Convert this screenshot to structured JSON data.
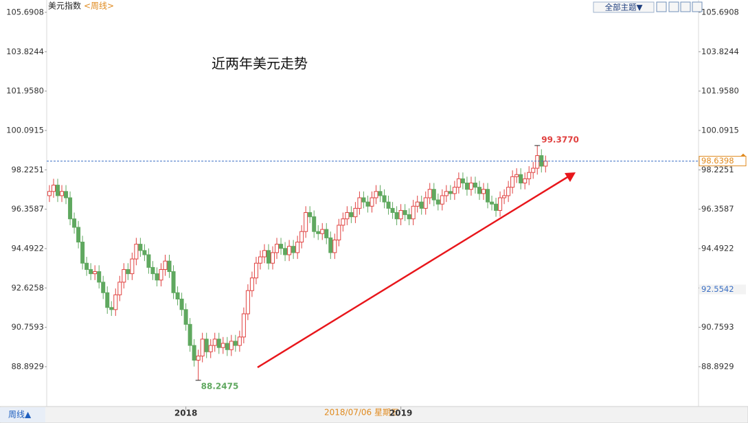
{
  "chart_data": {
    "type": "candlestick",
    "instrument": "美元指数",
    "period": "<周线>",
    "title": "近两年美元走势",
    "toolbar": "全部主题▼",
    "footer_tab": "周线▲",
    "cursor_date": "2018/07/06 星期五",
    "up_color": "#e0403f",
    "down_color": "#5fa85f",
    "ylim": [
      87.07,
      105.95
    ],
    "yticks": [
      105.6908,
      103.8244,
      {
        "value": 101.958,
        "label": "101.9580"
      },
      100.0915,
      98.2251,
      96.3587,
      94.4922,
      92.6258,
      90.7593,
      88.8929
    ],
    "xlim": [
      -0.66,
      157
    ],
    "xticks": [
      {
        "value": 33,
        "label": "2018"
      },
      {
        "value": 85,
        "label": "2019"
      }
    ],
    "high_label": {
      "value": 99.377,
      "label": "99.3770"
    },
    "low_label": {
      "value": 88.2475,
      "label": "88.2475"
    },
    "last_price": {
      "value": 98.6398,
      "label": "98.6398"
    },
    "marker_price": {
      "value": 92.5542,
      "label": "92.5542"
    },
    "open": [
      97.0,
      97.2,
      97.5,
      97.0,
      97.2,
      96.9,
      95.9,
      95.5,
      94.8,
      93.8,
      93.5,
      93.3,
      93.4,
      92.9,
      92.4,
      91.7,
      91.6,
      92.3,
      92.9,
      93.5,
      93.3,
      94.0,
      94.7,
      94.4,
      94.2,
      93.6,
      93.3,
      93.0,
      93.5,
      93.9,
      93.4,
      92.4,
      92.1,
      91.6,
      90.9,
      89.9,
      89.2,
      89.4,
      90.2,
      89.6,
      89.9,
      90.2,
      89.8,
      90.0,
      89.7,
      90.1,
      89.9,
      90.3,
      91.4,
      92.5,
      93.1,
      93.8,
      94.1,
      94.4,
      93.8,
      94.3,
      94.7,
      94.5,
      94.2,
      94.6,
      94.3,
      94.8,
      95.3,
      96.2,
      96.0,
      95.3,
      95.2,
      95.4,
      95.0,
      94.3,
      94.9,
      95.6,
      95.9,
      96.2,
      96.0,
      96.4,
      96.9,
      96.7,
      96.5,
      96.9,
      97.2,
      97.0,
      96.7,
      96.4,
      96.2,
      95.9,
      96.3,
      96.1,
      95.9,
      96.5,
      96.7,
      96.4,
      96.9,
      97.3,
      96.8,
      96.6,
      97.0,
      97.2,
      97.1,
      97.4,
      97.8,
      97.6,
      97.3,
      97.6,
      97.4,
      97.1,
      97.3,
      96.7,
      96.6,
      96.3,
      96.9,
      97.0,
      97.4,
      97.9,
      98.0,
      97.6,
      97.8,
      98.1,
      98.3,
      98.9,
      98.4
    ],
    "high": [
      97.5,
      97.8,
      97.8,
      97.5,
      97.5,
      97.2,
      96.2,
      95.8,
      95.1,
      94.1,
      93.8,
      93.7,
      93.7,
      93.2,
      92.7,
      92.0,
      92.6,
      93.2,
      93.8,
      93.8,
      94.3,
      95.0,
      95.0,
      94.7,
      94.5,
      93.9,
      93.6,
      93.8,
      94.2,
      94.2,
      93.7,
      92.7,
      92.4,
      91.9,
      91.2,
      90.2,
      89.7,
      90.5,
      90.5,
      90.2,
      90.5,
      90.5,
      90.3,
      90.3,
      90.4,
      90.4,
      90.6,
      91.7,
      92.8,
      93.4,
      94.1,
      94.4,
      94.7,
      94.7,
      94.6,
      95.0,
      95.0,
      94.8,
      94.9,
      94.9,
      95.1,
      95.6,
      96.5,
      96.5,
      96.3,
      95.6,
      95.7,
      95.7,
      95.3,
      95.2,
      95.9,
      96.2,
      96.5,
      96.5,
      96.7,
      97.2,
      97.2,
      97.0,
      97.2,
      97.5,
      97.5,
      97.3,
      97.0,
      96.7,
      96.5,
      96.6,
      96.6,
      96.4,
      96.8,
      97.0,
      97.0,
      97.2,
      97.6,
      97.6,
      97.1,
      97.3,
      97.5,
      97.5,
      97.7,
      98.1,
      98.1,
      97.9,
      97.9,
      97.9,
      97.7,
      97.6,
      97.6,
      97.0,
      96.9,
      97.2,
      97.3,
      97.7,
      98.2,
      98.3,
      98.3,
      98.1,
      98.4,
      98.6,
      99.377,
      99.2,
      98.9
    ],
    "low": [
      96.7,
      96.9,
      96.7,
      96.7,
      96.6,
      95.6,
      95.2,
      94.5,
      93.5,
      93.2,
      93.0,
      93.0,
      92.6,
      92.1,
      91.4,
      91.3,
      91.3,
      92.0,
      92.6,
      93.0,
      93.0,
      93.7,
      94.1,
      93.9,
      93.3,
      93.0,
      92.7,
      92.7,
      93.2,
      93.1,
      92.1,
      91.8,
      91.3,
      90.6,
      89.6,
      88.9,
      88.2475,
      89.1,
      89.3,
      89.3,
      89.6,
      89.5,
      89.5,
      89.4,
      89.4,
      89.6,
      89.6,
      90.0,
      91.1,
      92.2,
      92.8,
      93.5,
      93.8,
      93.5,
      93.5,
      94.0,
      94.2,
      93.9,
      93.9,
      94.0,
      94.0,
      94.5,
      95.0,
      95.7,
      95.0,
      94.9,
      94.9,
      94.7,
      94.0,
      94.0,
      94.6,
      95.3,
      95.6,
      95.7,
      95.7,
      96.1,
      96.4,
      96.2,
      96.2,
      96.6,
      96.7,
      96.4,
      96.1,
      95.9,
      95.6,
      95.6,
      95.8,
      95.6,
      95.6,
      96.2,
      96.1,
      96.1,
      96.6,
      96.5,
      96.3,
      96.3,
      96.7,
      96.8,
      96.8,
      97.1,
      97.3,
      97.0,
      97.0,
      97.1,
      96.8,
      96.8,
      96.4,
      96.3,
      96.0,
      96.0,
      96.6,
      96.7,
      97.1,
      97.6,
      97.3,
      97.3,
      97.5,
      97.8,
      98.0,
      98.1,
      98.1
    ],
    "close": [
      97.2,
      97.5,
      97.0,
      97.2,
      96.9,
      95.9,
      95.5,
      94.8,
      93.8,
      93.5,
      93.3,
      93.4,
      92.9,
      92.4,
      91.7,
      91.6,
      92.3,
      92.9,
      93.5,
      93.3,
      94.0,
      94.7,
      94.4,
      94.2,
      93.6,
      93.3,
      93.0,
      93.5,
      93.9,
      93.4,
      92.4,
      92.1,
      91.6,
      90.9,
      89.9,
      89.2,
      89.4,
      90.2,
      89.6,
      89.9,
      90.2,
      89.8,
      90.0,
      89.7,
      90.1,
      89.9,
      90.3,
      91.4,
      92.5,
      93.1,
      93.8,
      94.1,
      94.4,
      93.8,
      94.3,
      94.7,
      94.5,
      94.2,
      94.6,
      94.3,
      94.8,
      95.3,
      96.2,
      96.0,
      95.3,
      95.2,
      95.4,
      95.0,
      94.3,
      94.9,
      95.6,
      95.9,
      96.2,
      96.0,
      96.4,
      96.9,
      96.7,
      96.5,
      96.9,
      97.2,
      97.0,
      96.7,
      96.4,
      96.2,
      95.9,
      96.3,
      96.1,
      95.9,
      96.5,
      96.7,
      96.4,
      96.9,
      97.3,
      96.8,
      96.6,
      97.0,
      97.2,
      97.1,
      97.4,
      97.8,
      97.6,
      97.3,
      97.6,
      97.4,
      97.1,
      97.3,
      96.7,
      96.6,
      96.3,
      96.9,
      97.0,
      97.4,
      97.9,
      98.0,
      97.6,
      97.8,
      98.1,
      98.3,
      98.9,
      98.4,
      98.6398
    ]
  }
}
